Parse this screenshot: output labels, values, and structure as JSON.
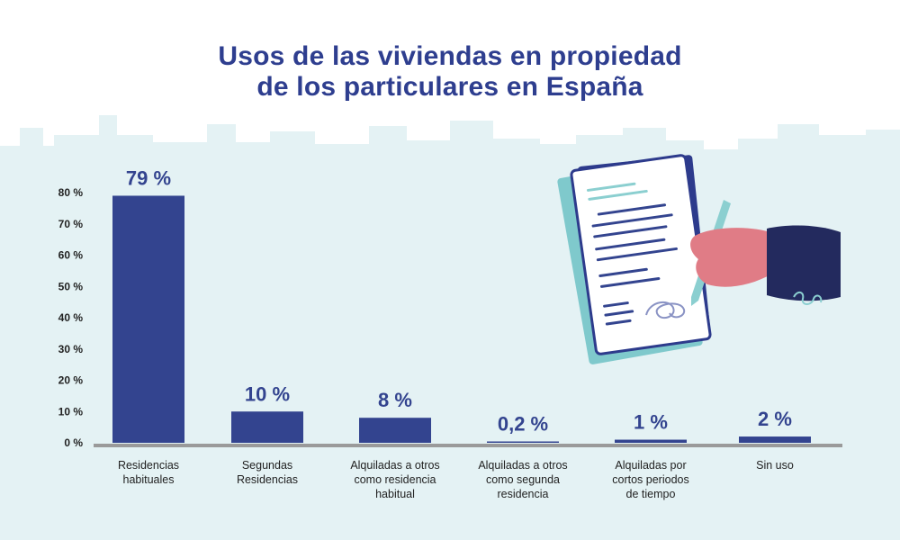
{
  "colors": {
    "bar": "#33448f",
    "title": "#2e3e8f",
    "skyline": "#e4f2f4",
    "axis": "#9a9a9a",
    "text": "#222222",
    "hand": "#e07c86",
    "sleeve": "#232a5e",
    "pen": "#8bcfd0"
  },
  "title": {
    "line1": "Usos de las viviendas en propiedad",
    "line2": "de los particulares en España"
  },
  "chart_data": {
    "type": "bar",
    "title": "Usos de las viviendas en propiedad de los particulares en España",
    "ylim": [
      0,
      80
    ],
    "yticks": [
      {
        "value": 0,
        "label": "0 %"
      },
      {
        "value": 10,
        "label": "10 %"
      },
      {
        "value": 20,
        "label": "20 %"
      },
      {
        "value": 30,
        "label": "30 %"
      },
      {
        "value": 40,
        "label": "40 %"
      },
      {
        "value": 50,
        "label": "50 %"
      },
      {
        "value": 60,
        "label": "60 %"
      },
      {
        "value": 70,
        "label": "70 %"
      },
      {
        "value": 80,
        "label": "80 %"
      }
    ],
    "bars": [
      {
        "category_lines": [
          "Residencias",
          "habituales"
        ],
        "value": 79,
        "label": "79 %"
      },
      {
        "category_lines": [
          "Segundas",
          "Residencias"
        ],
        "value": 10,
        "label": "10 %"
      },
      {
        "category_lines": [
          "Alquiladas a otros",
          "como residencia",
          "habitual"
        ],
        "value": 8,
        "label": "8 %"
      },
      {
        "category_lines": [
          "Alquiladas a otros",
          "como segunda",
          "residencia"
        ],
        "value": 0.2,
        "label": "0,2 %"
      },
      {
        "category_lines": [
          "Alquiladas por",
          "cortos periodos",
          "de tiempo"
        ],
        "value": 1,
        "label": "1 %"
      },
      {
        "category_lines": [
          "Sin uso"
        ],
        "value": 2,
        "label": "2 %"
      }
    ]
  }
}
